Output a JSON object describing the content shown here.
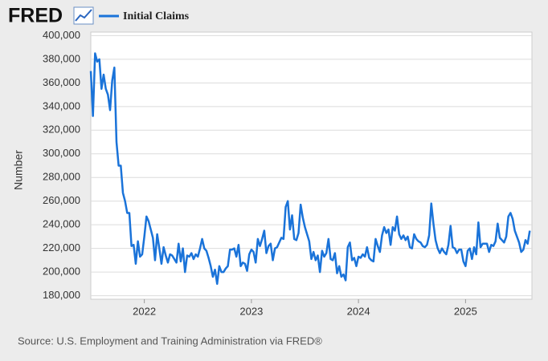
{
  "chart_data": {
    "type": "line",
    "logo": "FRED",
    "ylabel": "Number",
    "source": "Source: U.S. Employment and Training Administration via FRED®",
    "grid": true,
    "xlim": [
      2021.5,
      2025.62
    ],
    "xticks": [
      2022,
      2023,
      2024,
      2025
    ],
    "ylim": [
      177000,
      403000
    ],
    "yticks": [
      {
        "value": 180000,
        "label": "180,000"
      },
      {
        "value": 200000,
        "label": "200,000"
      },
      {
        "value": 220000,
        "label": "220,000"
      },
      {
        "value": 240000,
        "label": "240,000"
      },
      {
        "value": 260000,
        "label": "260,000"
      },
      {
        "value": 280000,
        "label": "280,000"
      },
      {
        "value": 300000,
        "label": "300,000"
      },
      {
        "value": 320000,
        "label": "320,000"
      },
      {
        "value": 340000,
        "label": "340,000"
      },
      {
        "value": 360000,
        "label": "360,000"
      },
      {
        "value": 380000,
        "label": "380,000"
      },
      {
        "value": 400000,
        "label": "400,000"
      }
    ],
    "x": [
      2021.5,
      2021.52,
      2021.54,
      2021.56,
      2021.58,
      2021.6,
      2021.62,
      2021.64,
      2021.66,
      2021.68,
      2021.7,
      2021.72,
      2021.74,
      2021.76,
      2021.78,
      2021.8,
      2021.82,
      2021.84,
      2021.86,
      2021.88,
      2021.9,
      2021.92,
      2021.94,
      2021.96,
      2021.98,
      2022,
      2022.02,
      2022.04,
      2022.06,
      2022.08,
      2022.1,
      2022.12,
      2022.14,
      2022.16,
      2022.18,
      2022.2,
      2022.22,
      2022.24,
      2022.26,
      2022.28,
      2022.3,
      2022.32,
      2022.34,
      2022.36,
      2022.38,
      2022.4,
      2022.42,
      2022.44,
      2022.46,
      2022.48,
      2022.5,
      2022.52,
      2022.54,
      2022.56,
      2022.58,
      2022.6,
      2022.62,
      2022.64,
      2022.66,
      2022.68,
      2022.7,
      2022.72,
      2022.74,
      2022.76,
      2022.78,
      2022.8,
      2022.82,
      2022.84,
      2022.86,
      2022.88,
      2022.9,
      2022.92,
      2022.94,
      2022.96,
      2022.98,
      2023,
      2023.02,
      2023.04,
      2023.06,
      2023.08,
      2023.1,
      2023.12,
      2023.14,
      2023.16,
      2023.18,
      2023.2,
      2023.22,
      2023.24,
      2023.26,
      2023.28,
      2023.3,
      2023.32,
      2023.34,
      2023.36,
      2023.38,
      2023.4,
      2023.42,
      2023.44,
      2023.46,
      2023.48,
      2023.5,
      2023.52,
      2023.54,
      2023.56,
      2023.58,
      2023.6,
      2023.62,
      2023.64,
      2023.66,
      2023.68,
      2023.7,
      2023.72,
      2023.74,
      2023.76,
      2023.78,
      2023.8,
      2023.82,
      2023.84,
      2023.86,
      2023.88,
      2023.9,
      2023.92,
      2023.94,
      2023.96,
      2023.98,
      2024,
      2024.02,
      2024.04,
      2024.06,
      2024.08,
      2024.1,
      2024.12,
      2024.14,
      2024.16,
      2024.18,
      2024.2,
      2024.22,
      2024.24,
      2024.26,
      2024.28,
      2024.3,
      2024.32,
      2024.34,
      2024.36,
      2024.38,
      2024.4,
      2024.42,
      2024.44,
      2024.46,
      2024.48,
      2024.5,
      2024.52,
      2024.54,
      2024.56,
      2024.58,
      2024.6,
      2024.62,
      2024.64,
      2024.66,
      2024.68,
      2024.7,
      2024.72,
      2024.74,
      2024.76,
      2024.78,
      2024.8,
      2024.82,
      2024.84,
      2024.86,
      2024.88,
      2024.9,
      2024.92,
      2024.94,
      2024.96,
      2024.98,
      2025,
      2025.02,
      2025.04,
      2025.06,
      2025.08,
      2025.1,
      2025.12,
      2025.14,
      2025.16,
      2025.18,
      2025.2,
      2025.22,
      2025.24,
      2025.26,
      2025.28,
      2025.3,
      2025.32,
      2025.34,
      2025.36,
      2025.38,
      2025.4,
      2025.42,
      2025.44,
      2025.46,
      2025.48,
      2025.5,
      2025.52,
      2025.54,
      2025.56,
      2025.58,
      2025.6
    ],
    "series": [
      {
        "name": "Initial Claims",
        "color": "#1a73d9",
        "values": [
          370000,
          332000,
          385000,
          378000,
          380000,
          355000,
          367000,
          355000,
          350000,
          337000,
          362000,
          373000,
          310000,
          290000,
          290000,
          267000,
          260000,
          250000,
          250000,
          222000,
          223000,
          207000,
          226000,
          213000,
          215000,
          230000,
          247000,
          243000,
          236000,
          229000,
          210000,
          232000,
          220000,
          207000,
          221000,
          214000,
          208000,
          215000,
          214000,
          211000,
          208000,
          224000,
          209000,
          220000,
          200000,
          214000,
          213000,
          216000,
          211000,
          215000,
          213000,
          220000,
          228000,
          220000,
          218000,
          212000,
          205000,
          196000,
          202000,
          190000,
          205000,
          200000,
          200000,
          203000,
          205000,
          219000,
          219000,
          220000,
          213000,
          223000,
          205000,
          208000,
          207000,
          201000,
          215000,
          219000,
          217000,
          208000,
          228000,
          222000,
          228000,
          235000,
          216000,
          222000,
          224000,
          210000,
          220000,
          221000,
          225000,
          229000,
          228000,
          255000,
          260000,
          236000,
          248000,
          228000,
          227000,
          233000,
          257000,
          246000,
          238000,
          232000,
          226000,
          211000,
          217000,
          210000,
          214000,
          200000,
          218000,
          213000,
          216000,
          228000,
          211000,
          210000,
          216000,
          199000,
          205000,
          196000,
          198000,
          193000,
          221000,
          225000,
          210000,
          212000,
          205000,
          213000,
          212000,
          215000,
          213000,
          221000,
          212000,
          210000,
          209000,
          228000,
          222000,
          217000,
          231000,
          238000,
          233000,
          236000,
          223000,
          238000,
          235000,
          247000,
          232000,
          228000,
          231000,
          227000,
          230000,
          221000,
          220000,
          232000,
          228000,
          226000,
          225000,
          222000,
          221000,
          223000,
          231000,
          258000,
          241000,
          227000,
          220000,
          216000,
          220000,
          217000,
          215000,
          223000,
          239000,
          221000,
          220000,
          216000,
          219000,
          219000,
          209000,
          205000,
          218000,
          220000,
          211000,
          221000,
          215000,
          242000,
          221000,
          224000,
          224000,
          224000,
          217000,
          223000,
          222000,
          226000,
          241000,
          229000,
          227000,
          225000,
          230000,
          247000,
          250000,
          245000,
          235000,
          230000,
          225000,
          217000,
          219000,
          227000,
          224000,
          235000
        ]
      }
    ]
  }
}
